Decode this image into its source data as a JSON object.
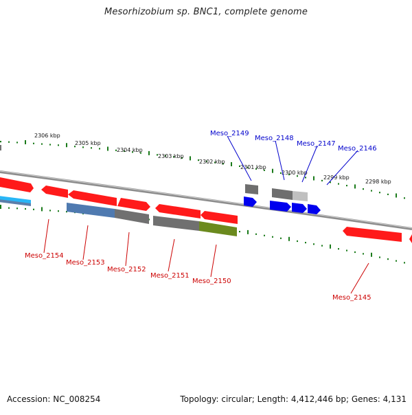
{
  "title": "Mesorhizobium sp. BNC1, complete genome",
  "footer": {
    "accession": "Accession: NC_008254",
    "summary": "Topology: circular; Length: 4,412,446 bp; Genes: 4,131"
  },
  "colors": {
    "forward_gene": "#ff0000",
    "reverse_gene": "#0000ff",
    "backbone": "#999999",
    "tick": "#1a7a1a",
    "reverse_label": "#cc0000",
    "forward_label": "#0000cc"
  },
  "scale_labels": [
    "2306 kbp",
    "2305 kbp",
    "2304 kbp",
    "2303 kbp",
    "2302 kbp",
    "2301 kbp",
    "2300 kbp",
    "2299 kbp",
    "2298 kbp"
  ],
  "forward_genes": [
    "Meso_2149",
    "Meso_2148",
    "Meso_2147",
    "Meso_2146"
  ],
  "reverse_genes": [
    "Meso_2154",
    "Meso_2153",
    "Meso_2152",
    "Meso_2151",
    "Meso_2150",
    "Meso_2145"
  ]
}
